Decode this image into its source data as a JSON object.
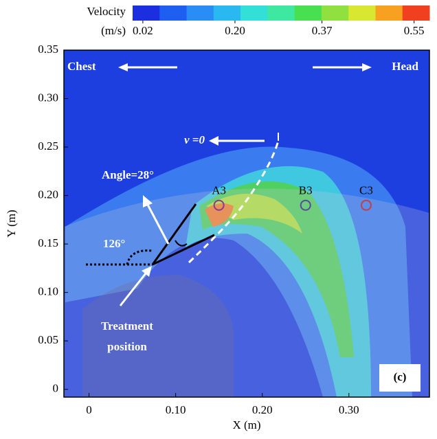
{
  "chart_data": {
    "type": "contour",
    "xlabel": "X (m)",
    "ylabel": "Y (m)",
    "xlim": [
      -0.029,
      0.393
    ],
    "ylim": [
      -0.008,
      0.35
    ],
    "xticks": [
      0,
      {
        "value": 0.1,
        "label": "0.10"
      },
      {
        "value": 0.2,
        "label": "0.20"
      },
      {
        "value": 0.3,
        "label": "0.30"
      }
    ],
    "yticks": [
      0,
      {
        "value": 0.05,
        "label": "0.05"
      },
      {
        "value": 0.1,
        "label": "0.10"
      },
      {
        "value": 0.15,
        "label": "0.15"
      },
      {
        "value": 0.2,
        "label": "0.20"
      },
      {
        "value": 0.25,
        "label": "0.25"
      },
      {
        "value": 0.3,
        "label": "0.30"
      },
      {
        "value": 0.35,
        "label": "0.35"
      }
    ],
    "colorbar": {
      "title": "Velocity",
      "unit": "(m/s)",
      "lim": [
        0,
        0.58
      ],
      "ticks": [
        {
          "value": 0.02,
          "label": "0.02"
        },
        {
          "value": 0.2,
          "label": "0.20"
        },
        {
          "value": 0.37,
          "label": "0.37"
        },
        {
          "value": 0.55,
          "label": "0.55"
        }
      ],
      "colors": [
        "#1c2fe0",
        "#1e5ef0",
        "#2a8cf5",
        "#2ab8f0",
        "#33e0d8",
        "#3ee8a0",
        "#48e050",
        "#90e040",
        "#d8e830",
        "#f8a020",
        "#f04020"
      ]
    },
    "points": {
      "labels": [
        "A3",
        "B3",
        "C3"
      ],
      "x": [
        0.15,
        0.25,
        0.32
      ],
      "y": [
        0.19,
        0.19,
        0.19
      ],
      "colors": [
        "#8b3a8b",
        "#5a4a9a",
        "#c0404a"
      ]
    },
    "annotations": {
      "chest": "Chest",
      "head": "Head",
      "velocity_zero": "v =0",
      "angle": "Angle=28°",
      "angle2": "126°",
      "treatment": [
        "Treatment",
        "position"
      ],
      "panel": "(c)"
    }
  }
}
